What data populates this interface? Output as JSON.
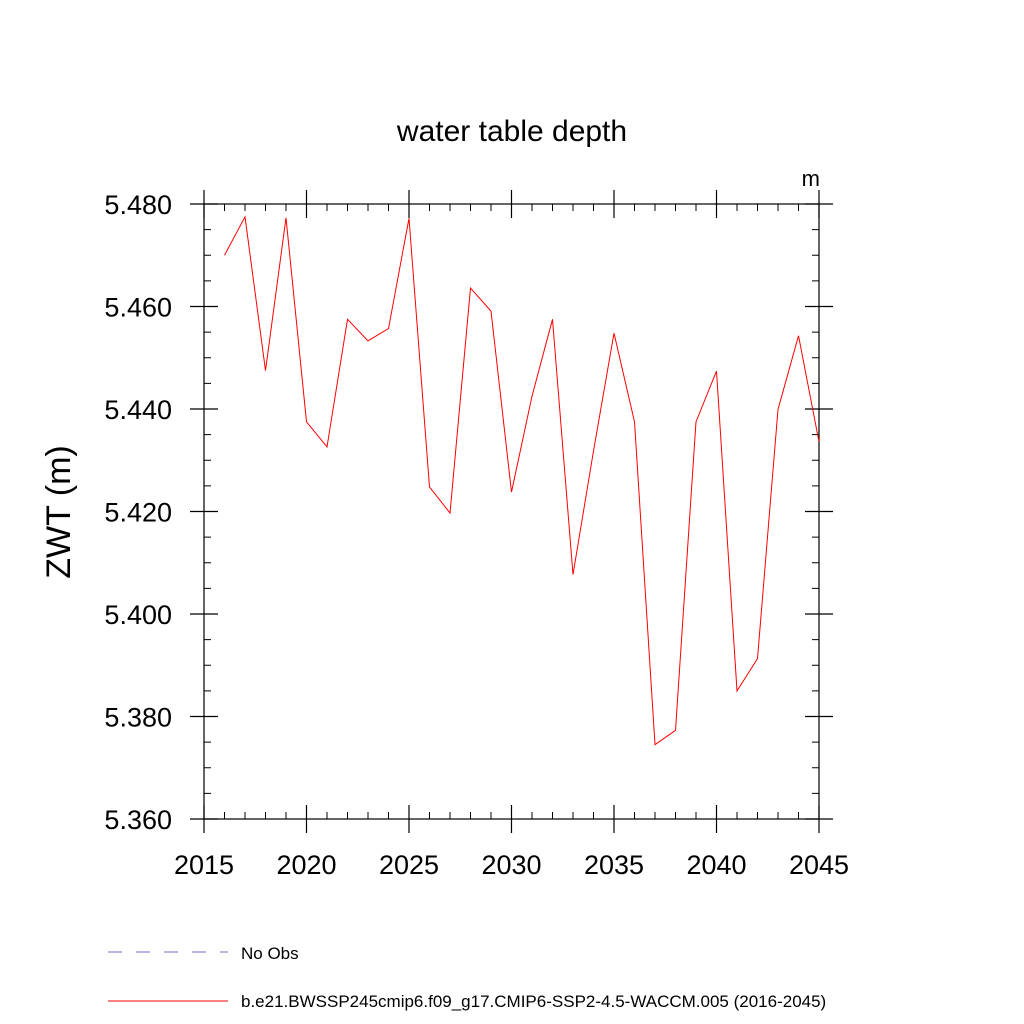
{
  "chart_data": {
    "type": "line",
    "title": "water table depth",
    "units_label": "m",
    "xlabel": "",
    "ylabel": "ZWT  (m)",
    "xlim": [
      2015,
      2045
    ],
    "ylim": [
      5.36,
      5.48
    ],
    "x_ticks": [
      2015,
      2020,
      2025,
      2030,
      2035,
      2040,
      2045
    ],
    "x_tick_labels": [
      "2015",
      "2020",
      "2025",
      "2030",
      "2035",
      "2040",
      "2045"
    ],
    "y_ticks": [
      5.36,
      5.38,
      5.4,
      5.42,
      5.44,
      5.46,
      5.48
    ],
    "y_tick_labels": [
      "5.360",
      "5.380",
      "5.400",
      "5.420",
      "5.440",
      "5.460",
      "5.480"
    ],
    "x_minor_step": 1,
    "y_minor_step": 0.005,
    "grid": false,
    "series": [
      {
        "name": "b.e21.BWSSP245cmip6.f09_g17.CMIP6-SSP2-4.5-WACCM.005 (2016-2045)",
        "color": "#ff0000",
        "style": "solid",
        "x": [
          2016,
          2017,
          2018,
          2019,
          2020,
          2021,
          2022,
          2023,
          2024,
          2025,
          2026,
          2027,
          2028,
          2029,
          2030,
          2031,
          2032,
          2033,
          2034,
          2035,
          2036,
          2037,
          2038,
          2039,
          2040,
          2041,
          2042,
          2043,
          2044,
          2045
        ],
        "values": [
          5.47,
          5.4775,
          5.4475,
          5.4773,
          5.4375,
          5.4326,
          5.4575,
          5.4533,
          5.4557,
          5.4772,
          5.4248,
          5.4197,
          5.4636,
          5.4591,
          5.4238,
          5.4425,
          5.4575,
          5.4077,
          5.4318,
          5.4548,
          5.4375,
          5.3745,
          5.3773,
          5.4375,
          5.4474,
          5.385,
          5.3913,
          5.4399,
          5.4543,
          5.4336
        ]
      }
    ],
    "legend": {
      "position": "bottom-left",
      "entries": [
        {
          "label": "No Obs",
          "color": "#7b68c8",
          "style": "dashed"
        },
        {
          "label": "b.e21.BWSSP245cmip6.f09_g17.CMIP6-SSP2-4.5-WACCM.005 (2016-2045)",
          "color": "#ff0000",
          "style": "solid"
        }
      ]
    }
  }
}
